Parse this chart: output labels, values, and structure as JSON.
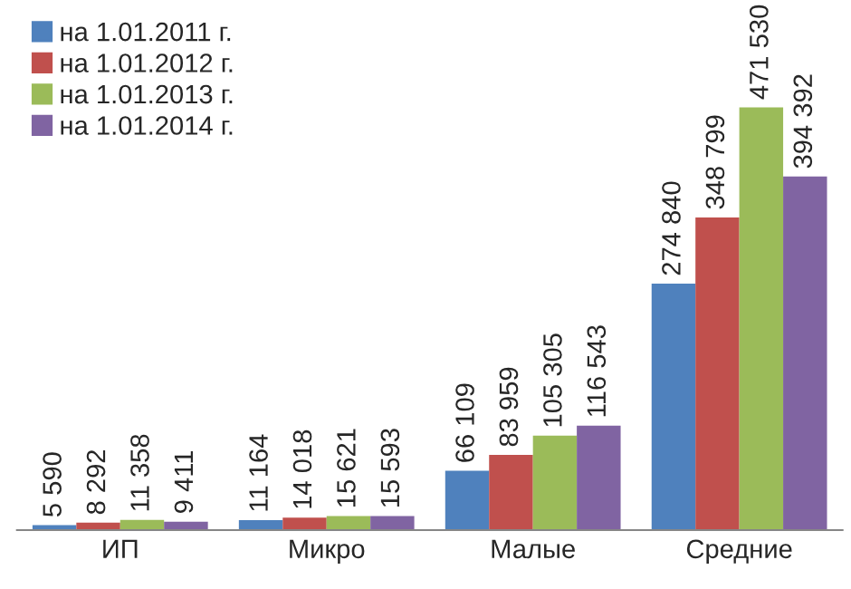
{
  "chart_data": {
    "type": "bar",
    "categories": [
      "ИП",
      "Микро",
      "Малые",
      "Средние"
    ],
    "series": [
      {
        "name": "на 1.01.2011 г.",
        "color": "#4f81bd",
        "values": [
          5590,
          11164,
          66109,
          274840
        ],
        "value_labels": [
          "5 590",
          "11 164",
          "66 109",
          "274 840"
        ]
      },
      {
        "name": "на 1.01.2012 г.",
        "color": "#c0504d",
        "values": [
          8292,
          14018,
          83959,
          348799
        ],
        "value_labels": [
          "8 292",
          "14 018",
          "83 959",
          "348 799"
        ]
      },
      {
        "name": "на 1.01.2013 г.",
        "color": "#9bbb59",
        "values": [
          11358,
          15621,
          105305,
          471530
        ],
        "value_labels": [
          "11 358",
          "15 621",
          "105 305",
          "471 530"
        ]
      },
      {
        "name": "на 1.01.2014 г.",
        "color": "#8064a2",
        "values": [
          9411,
          15593,
          116543,
          394392
        ],
        "value_labels": [
          "9 411",
          "15 593",
          "116 543",
          "394 392"
        ]
      }
    ],
    "tick_labels": "x",
    "grid": false,
    "legend": "top left"
  }
}
